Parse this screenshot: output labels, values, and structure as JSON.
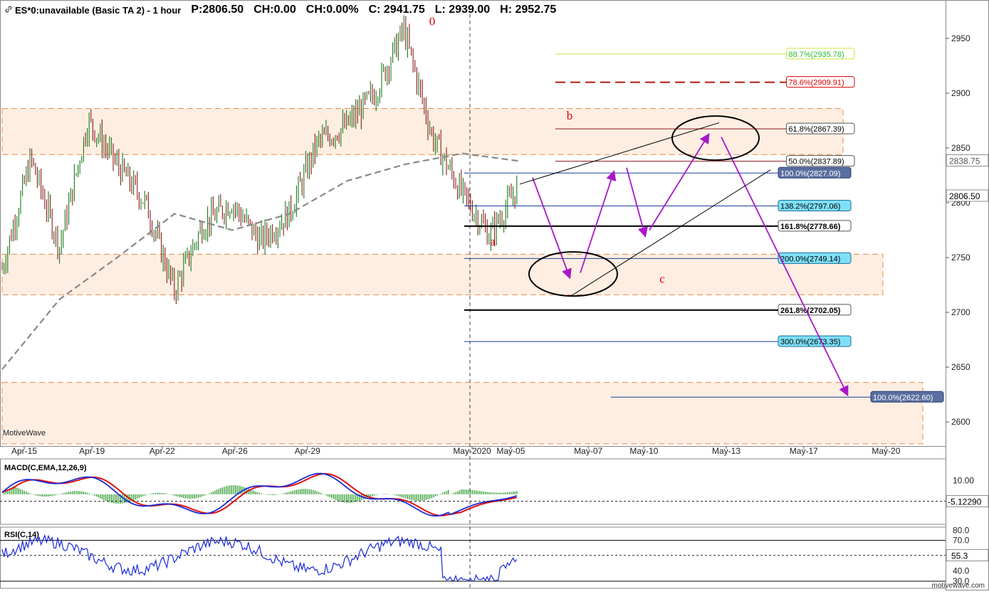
{
  "header": {
    "symbol": "ES*0:unavailable (Basic TA 2) - 1 hour",
    "p": "P:2806.50",
    "ch": "CH:0.00",
    "chp": "CH:0.00%",
    "c": "C: 2941.75",
    "l": "L: 2939.00",
    "h": "H: 2952.75"
  },
  "watermark": "MotiveWave",
  "footer_watermark": "motivewave.com",
  "chart_data": [
    {
      "type": "candlestick",
      "title": "ES*0:unavailable (Basic TA 2) - 1 hour",
      "ylim": [
        2578,
        2985
      ],
      "y_ticks": [
        2600,
        2650,
        2700,
        2750,
        2800,
        2850,
        2900,
        2950
      ],
      "x_ticks": [
        "Apr-15",
        "Apr-19",
        "Apr-22",
        "Apr-26",
        "Apr-29",
        "May-2020",
        "May-05",
        "May-07",
        "May-10",
        "May-13",
        "May-17",
        "May-20"
      ],
      "price_path": [
        [
          "Apr-14",
          2740
        ],
        [
          "Apr-15",
          2840
        ],
        [
          "Apr-16",
          2760
        ],
        [
          "Apr-17",
          2875
        ],
        [
          "Apr-19",
          2835
        ],
        [
          "Apr-20",
          2800
        ],
        [
          "Apr-21",
          2720
        ],
        [
          "Apr-22",
          2780
        ],
        [
          "Apr-23",
          2800
        ],
        [
          "Apr-24",
          2765
        ],
        [
          "Apr-26",
          2790
        ],
        [
          "Apr-27",
          2855
        ],
        [
          "Apr-28",
          2870
        ],
        [
          "Apr-29",
          2900
        ],
        [
          "Apr-30",
          2958
        ],
        [
          "May-01",
          2860
        ],
        [
          "May-01",
          2810
        ],
        [
          "May-02",
          2770
        ],
        [
          "May-03",
          2815
        ]
      ],
      "moving_average": [
        [
          "Apr-14",
          2648
        ],
        [
          "Apr-16",
          2712
        ],
        [
          "Apr-18",
          2750
        ],
        [
          "Apr-20",
          2790
        ],
        [
          "Apr-22",
          2775
        ],
        [
          "Apr-24",
          2790
        ],
        [
          "Apr-27",
          2820
        ],
        [
          "Apr-29",
          2835
        ],
        [
          "May-01",
          2845
        ],
        [
          "May-03",
          2838
        ]
      ],
      "current_price": "2806.50",
      "ma_value": "2838.75",
      "zones": [
        [
          2844,
          2886
        ],
        [
          2716,
          2753
        ],
        [
          2580,
          2636
        ]
      ],
      "wave_labels": [
        {
          "text": "0",
          "price": 2962
        },
        {
          "text": "a",
          "price": 2761
        },
        {
          "text": "b",
          "price": 2876
        },
        {
          "text": "c",
          "price": 2727
        }
      ],
      "fib_levels": [
        {
          "label": "88.7%(2935.78)",
          "price": 2935.78,
          "color": "#cce63d",
          "text_color": "#2dbd2d"
        },
        {
          "label": "78.6%(2909.91)",
          "price": 2909.91,
          "color": "#b51818",
          "text_color": "#d40000"
        },
        {
          "label": "61.8%(2867.39)",
          "price": 2867.39,
          "color": "#8b1a1a",
          "text_color": "#000000"
        },
        {
          "label": "50.0%(2837.89)",
          "price": 2837.89,
          "color": "#8b1a1a",
          "text_color": "#000000"
        },
        {
          "label": "100.0%(2827.09)",
          "price": 2827.09,
          "color": "#1a3f9a",
          "text_color": "#ffffff"
        },
        {
          "label": "138.2%(2797.06)",
          "price": 2797.06,
          "color": "#1a3f9a",
          "text_color": "#000000"
        },
        {
          "label": "161.8%(2778.66)",
          "price": 2778.66,
          "color": "#000000",
          "text_color": "#000000"
        },
        {
          "label": "200.0%(2749.14)",
          "price": 2749.14,
          "color": "#1a3f9a",
          "text_color": "#000000"
        },
        {
          "label": "261.8%(2702.05)",
          "price": 2702.05,
          "color": "#000000",
          "text_color": "#000000"
        },
        {
          "label": "300.0%(2673.35)",
          "price": 2673.35,
          "color": "#1a3f9a",
          "text_color": "#000000"
        },
        {
          "label": "100.0%(2622.60)",
          "price": 2622.6,
          "color": "#1a3f9a",
          "text_color": "#ffffff"
        }
      ],
      "projection_path_prices": [
        2823,
        2732,
        2828,
        2832,
        2770,
        2862,
        2625
      ]
    },
    {
      "type": "line",
      "title": "MACD(C,EMA,12,26,9)",
      "ylim": [
        -22,
        26
      ],
      "y_ticks": [
        10
      ],
      "value_label": "-5.12290",
      "reference_value": -5.1229
    },
    {
      "type": "line",
      "title": "RSI(C,14)",
      "ylim": [
        23,
        83
      ],
      "y_ticks": [
        80,
        70,
        40,
        30
      ],
      "levels": [
        70,
        30
      ],
      "value_label": "55.3",
      "reference_value": 55.3
    }
  ]
}
